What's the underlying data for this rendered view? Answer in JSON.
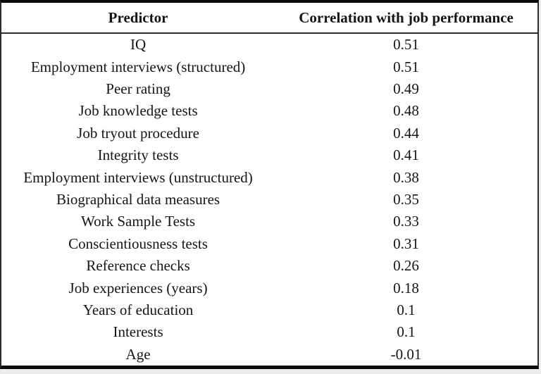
{
  "table": {
    "columns": [
      "Predictor",
      "Correlation with job performance"
    ],
    "rows": [
      [
        "IQ",
        "0.51"
      ],
      [
        "Employment interviews (structured)",
        "0.51"
      ],
      [
        "Peer rating",
        "0.49"
      ],
      [
        "Job knowledge tests",
        "0.48"
      ],
      [
        "Job tryout procedure",
        "0.44"
      ],
      [
        "Integrity tests",
        "0.41"
      ],
      [
        "Employment interviews (unstructured)",
        "0.38"
      ],
      [
        "Biographical data measures",
        "0.35"
      ],
      [
        "Work Sample Tests",
        "0.33"
      ],
      [
        "Conscientiousness tests",
        "0.31"
      ],
      [
        "Reference checks",
        "0.26"
      ],
      [
        "Job experiences (years)",
        "0.18"
      ],
      [
        "Years of education",
        "0.1"
      ],
      [
        "Interests",
        "0.1"
      ],
      [
        "Age",
        "-0.01"
      ]
    ]
  },
  "chart_data": {
    "type": "table",
    "title": "",
    "columns": [
      "Predictor",
      "Correlation with job performance"
    ],
    "categories": [
      "IQ",
      "Employment interviews (structured)",
      "Peer rating",
      "Job knowledge tests",
      "Job tryout procedure",
      "Integrity tests",
      "Employment interviews (unstructured)",
      "Biographical data measures",
      "Work Sample Tests",
      "Conscientiousness tests",
      "Reference checks",
      "Job experiences (years)",
      "Years of education",
      "Interests",
      "Age"
    ],
    "values": [
      0.51,
      0.51,
      0.49,
      0.48,
      0.44,
      0.41,
      0.38,
      0.35,
      0.33,
      0.31,
      0.26,
      0.18,
      0.1,
      0.1,
      -0.01
    ]
  },
  "colors": {
    "border": "#0a0a0a",
    "text": "#151515",
    "background": "#ffffff"
  }
}
